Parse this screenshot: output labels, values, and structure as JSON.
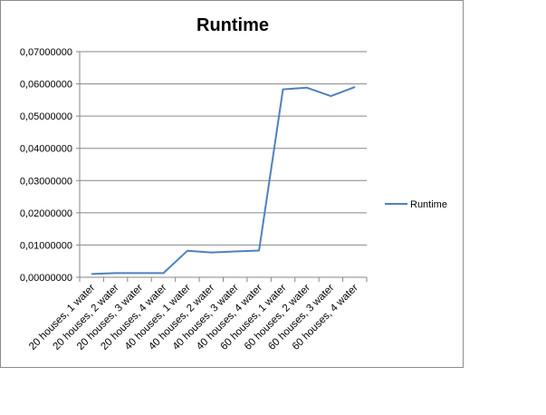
{
  "chart_data": {
    "type": "line",
    "title": "Runtime",
    "xlabel": "",
    "ylabel": "",
    "categories": [
      "20 houses, 1 water",
      "20 houses, 2 water",
      "20 houses, 3 water",
      "20 houses, 4 water",
      "40 houses, 1 water",
      "40 houses, 2 water",
      "40 houses, 3 water",
      "40 houses, 4 water",
      "60 houses, 1 water",
      "60 houses, 2 water",
      "60 houses, 3 water",
      "60 houses, 4 water"
    ],
    "series": [
      {
        "name": "Runtime",
        "color": "#4f81bd",
        "values": [
          0.001,
          0.0013,
          0.0013,
          0.0013,
          0.0082,
          0.0077,
          0.008,
          0.0083,
          0.0583,
          0.0588,
          0.0562,
          0.059
        ]
      }
    ],
    "ylim": [
      0,
      0.07
    ],
    "yticks": [
      "0,00000000",
      "0,01000000",
      "0,02000000",
      "0,03000000",
      "0,04000000",
      "0,05000000",
      "0,06000000",
      "0,07000000"
    ],
    "grid": true,
    "legend_position": "right"
  }
}
